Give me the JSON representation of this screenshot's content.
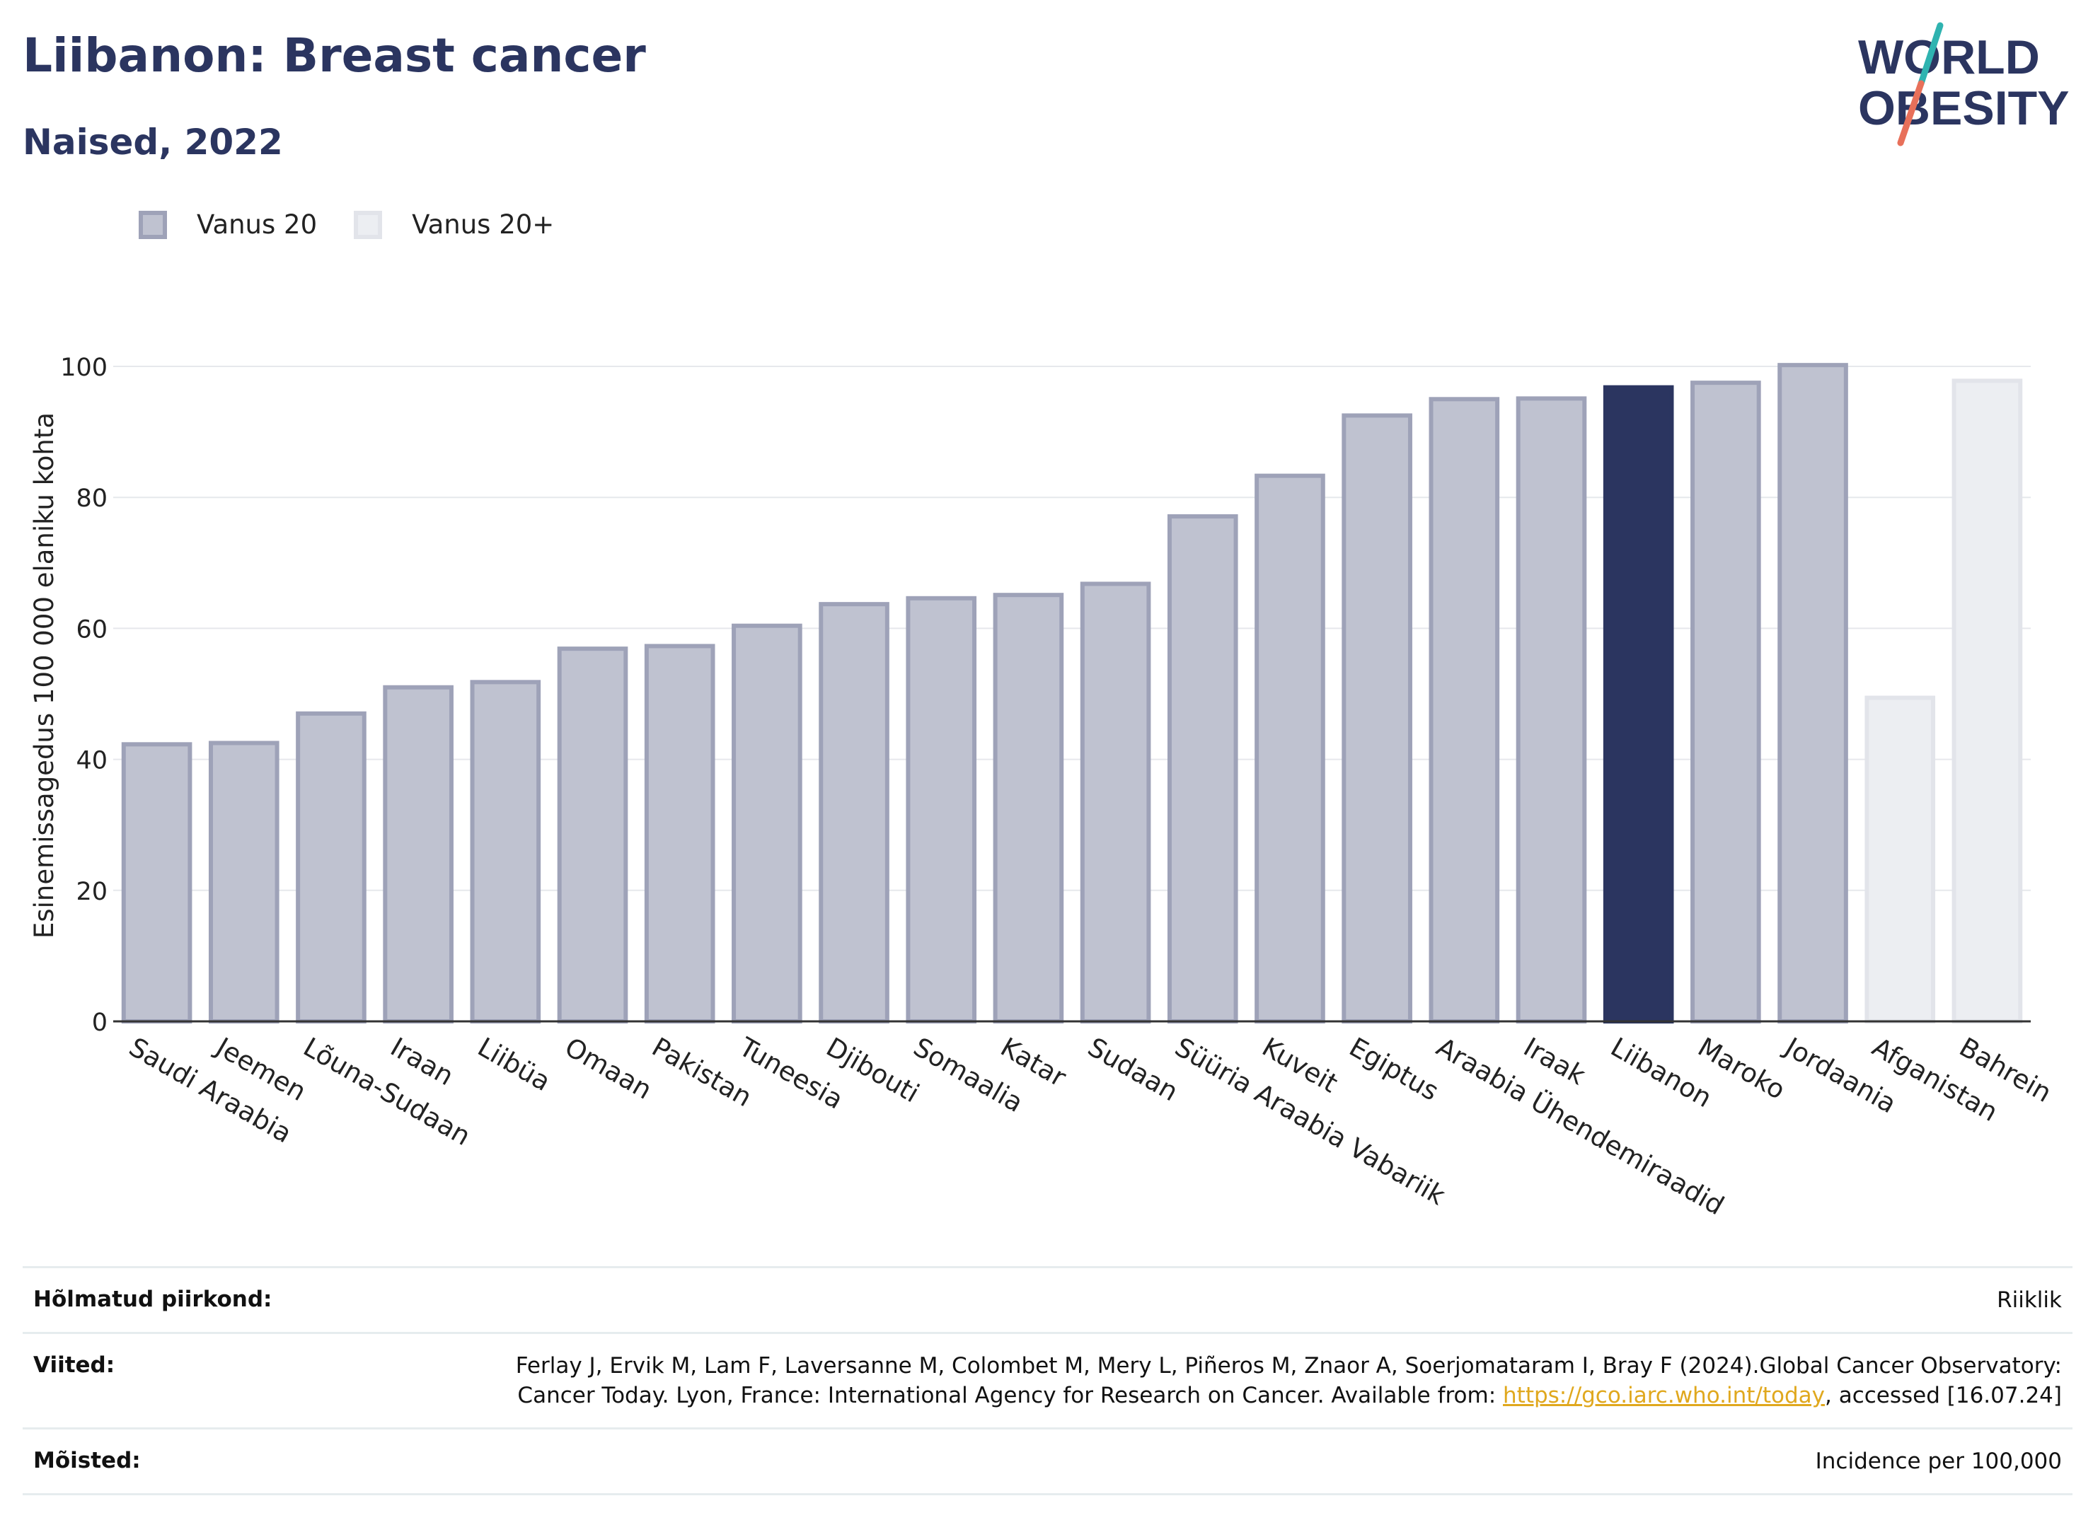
{
  "header": {
    "title": "Liibanon: Breast cancer",
    "subtitle": "Naised, 2022"
  },
  "logo": {
    "line1": "WORLD",
    "line2": "OBESITY",
    "colors": {
      "text": "#2b3560",
      "accent_teal": "#2fb3b0",
      "accent_coral": "#e8705a"
    }
  },
  "legend": {
    "items": [
      {
        "label": "Vanus 20",
        "fill": "#bfc2d0",
        "stroke": "#9ea2b8"
      },
      {
        "label": "Vanus 20+",
        "fill": "#eceef2",
        "stroke": "#e2e4ea"
      }
    ]
  },
  "chart_data": {
    "type": "bar",
    "title": "",
    "ylabel": "Esinemissagedus 100 000 elaniku kohta",
    "xlabel": "",
    "ylim": [
      0,
      100
    ],
    "yticks": [
      0,
      20,
      40,
      60,
      80,
      100
    ],
    "grid": true,
    "legend_position": "top-left",
    "highlight_color": "#2b3560",
    "categories": [
      "Saudi Araabia",
      "Jeemen",
      "Lõuna-Sudaan",
      "Iraan",
      "Liibüa",
      "Omaan",
      "Pakistan",
      "Tuneesia",
      "Djibouti",
      "Somaalia",
      "Katar",
      "Sudaan",
      "Süüria Araabia Vabariik",
      "Kuveit",
      "Egiptus",
      "Araabia Ühendemiraadid",
      "Iraak",
      "Liibanon",
      "Maroko",
      "Jordaania",
      "Afganistan",
      "Bahrein"
    ],
    "values": [
      42.3,
      42.5,
      47.0,
      51.0,
      51.8,
      56.9,
      57.3,
      60.4,
      63.7,
      64.6,
      65.1,
      66.8,
      77.1,
      83.3,
      92.5,
      95.0,
      95.1,
      96.8,
      97.5,
      100.2,
      49.4,
      97.8
    ],
    "series_index": [
      0,
      0,
      0,
      0,
      0,
      0,
      0,
      0,
      0,
      0,
      0,
      0,
      0,
      0,
      0,
      0,
      0,
      0,
      0,
      0,
      1,
      1
    ],
    "highlighted": "Liibanon"
  },
  "footer": {
    "rows": [
      {
        "label": "Hõlmatud piirkond:",
        "value": "Riiklik"
      },
      {
        "label": "Viited:",
        "value_before": "Ferlay J, Ervik M, Lam F, Laversanne M, Colombet M, Mery L, Piñeros M, Znaor A, Soerjomataram I, Bray F (2024).Global Cancer Observatory: Cancer Today. Lyon, France: International Agency for Research on Cancer. Available from: ",
        "link": "https://gco.iarc.who.int/today",
        "value_after": ", accessed [16.07.24]"
      },
      {
        "label": "Mõisted:",
        "value": "Incidence per 100,000"
      }
    ]
  }
}
